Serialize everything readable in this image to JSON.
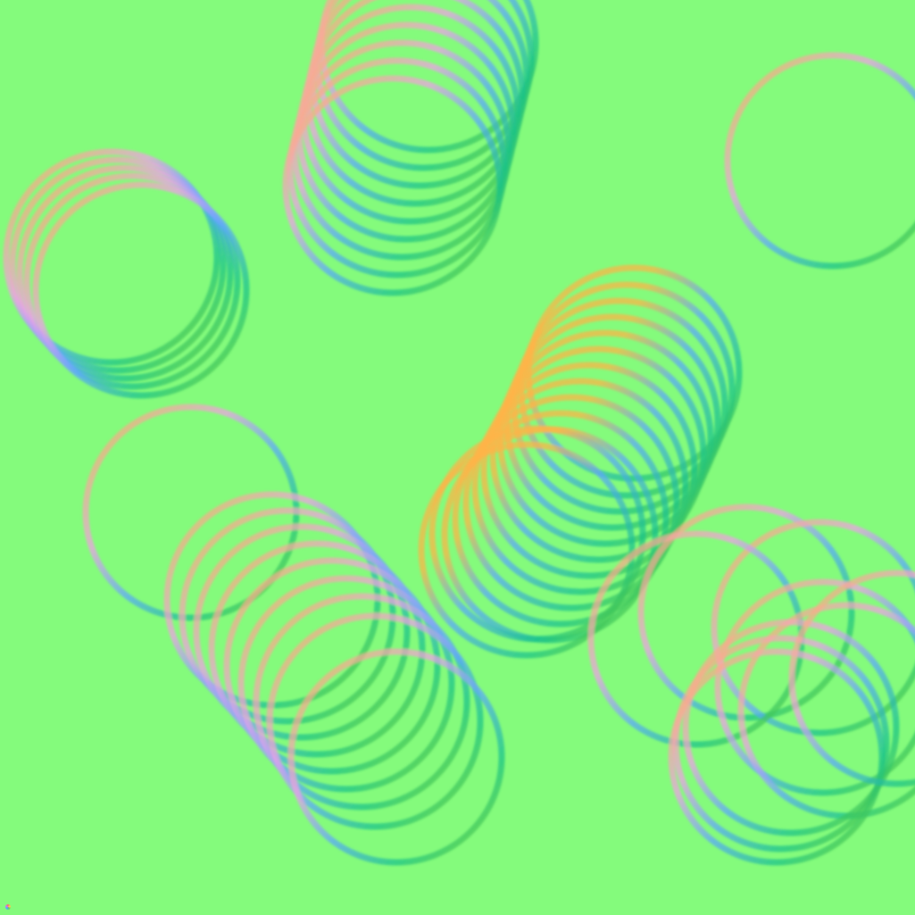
{
  "background_color": "#84fb7c",
  "ring_palette": {
    "orange": "#ffb347",
    "pink": "#f0a0e8",
    "blue": "#5aa6ff",
    "teal": "#17c28a",
    "olive": "#7ccd18"
  },
  "ring_groups": [
    {
      "name": "top-center-stack",
      "ring_count": 9
    },
    {
      "name": "top-right-single",
      "ring_count": 1
    },
    {
      "name": "left-stack",
      "ring_count": 5
    },
    {
      "name": "center-right-stack",
      "ring_count": 13
    },
    {
      "name": "bottom-left-stack",
      "ring_count": 10
    },
    {
      "name": "bottom-right-cluster",
      "ring_count": 9
    }
  ],
  "corner_icon": "color-wheel-icon"
}
